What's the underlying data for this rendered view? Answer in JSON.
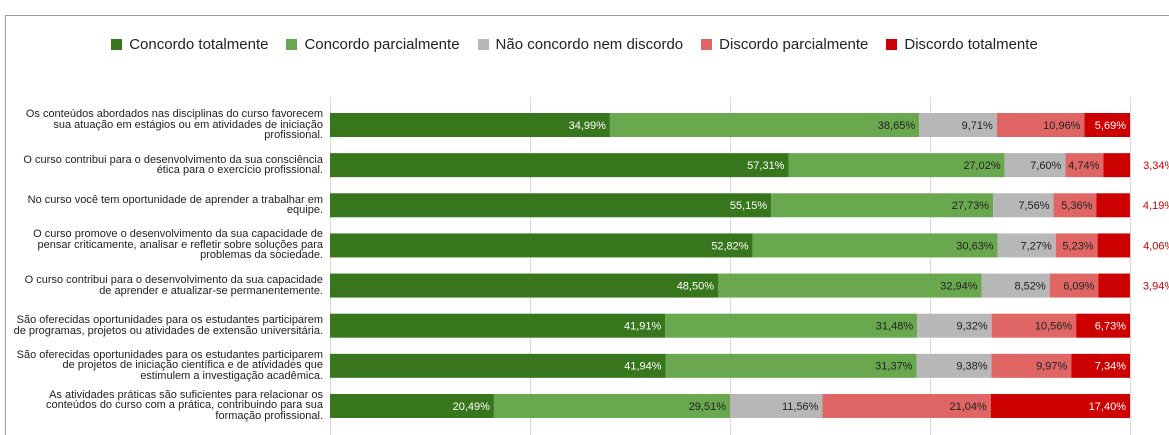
{
  "chart_data": {
    "type": "stacked-barh",
    "categories": [
      "Os conteúdos abordados nas disciplinas do curso favorecem sua atuação em estágios ou em atividades de iniciação profissional.",
      "O curso contribui para o desenvolvimento da sua consciência ética para o exercício profissional.",
      "No curso você tem oportunidade de aprender a trabalhar em equipe.",
      "O curso promove o desenvolvimento da sua capacidade de pensar criticamente, analisar e refletir sobre soluções para problemas da sociedade.",
      "O curso contribui para o desenvolvimento da sua capacidade de aprender e atualizar-se permanentemente.",
      "São oferecidas oportunidades para os estudantes participarem de programas, projetos ou atividades de extensão universitária.",
      "São oferecidas oportunidades para os estudantes participarem de projetos de iniciação científica e de atividades que estimulem a investigação acadêmica.",
      "As atividades práticas são suficientes para relacionar os conteúdos do curso com a prática, contribuindo para sua formação profissional."
    ],
    "series": [
      {
        "name": "Concordo totalmente",
        "color": "#38761d",
        "label_color": "#ffffff",
        "values": [
          34.99,
          57.31,
          55.15,
          52.82,
          48.5,
          41.91,
          41.94,
          20.49
        ],
        "value_labels": [
          "34,99%",
          "57,31%",
          "55,15%",
          "52,82%",
          "48,50%",
          "41,91%",
          "41,94%",
          "20,49%"
        ]
      },
      {
        "name": "Concordo parcialmente",
        "color": "#6aa84f",
        "label_color": "#222222",
        "values": [
          38.65,
          27.02,
          27.73,
          30.63,
          32.94,
          31.48,
          31.37,
          29.51
        ],
        "value_labels": [
          "38,65%",
          "27,02%",
          "27,73%",
          "30,63%",
          "32,94%",
          "31,48%",
          "31,37%",
          "29,51%"
        ]
      },
      {
        "name": "Não concordo nem discordo",
        "color": "#b7b7b7",
        "label_color": "#222222",
        "values": [
          9.71,
          7.6,
          7.56,
          7.27,
          8.52,
          9.32,
          9.38,
          11.56
        ],
        "value_labels": [
          "9,71%",
          "7,60%",
          "7,56%",
          "7,27%",
          "8,52%",
          "9,32%",
          "9,38%",
          "11,56%"
        ]
      },
      {
        "name": "Discordo parcialmente",
        "color": "#e06666",
        "label_color": "#222222",
        "values": [
          10.96,
          4.74,
          5.36,
          5.23,
          6.09,
          10.56,
          9.97,
          21.04
        ],
        "value_labels": [
          "10,96%",
          "4,74%",
          "5,36%",
          "5,23%",
          "6,09%",
          "10,56%",
          "9,97%",
          "21,04%"
        ]
      },
      {
        "name": "Discordo totalmente",
        "color": "#cc0000",
        "label_color": "#ffffff",
        "values": [
          5.69,
          3.34,
          4.19,
          4.06,
          3.94,
          6.73,
          7.34,
          17.4
        ],
        "value_labels": [
          "5,69%",
          "3,34%",
          "4,19%",
          "4,06%",
          "3,94%",
          "6,73%",
          "7,34%",
          "17,40%"
        ]
      }
    ],
    "xlim": [
      0,
      100
    ],
    "xticks": [
      0,
      25,
      50,
      75,
      100
    ],
    "grid": true,
    "legend": "top"
  }
}
